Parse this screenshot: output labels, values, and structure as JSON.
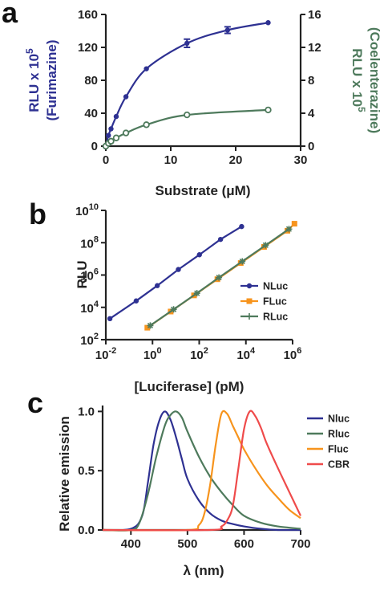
{
  "colors": {
    "blue": "#2E3192",
    "green": "#4E7A5C",
    "orange": "#F7941D",
    "red": "#EF4B4B",
    "axis": "#222222"
  },
  "panels": {
    "a": "a",
    "b": "b",
    "c": "c"
  },
  "chart_data": [
    {
      "id": "a",
      "type": "line",
      "xlabel": "Substrate (μM)",
      "ylabel": "RLU x 10",
      "ylabel_exp": "5",
      "ylabel_sub": "(Furimazine)",
      "y2label": "RLU x 10",
      "y2label_exp": "5",
      "y2label_sub": "(Coelenterazine)",
      "xlim": [
        0,
        30
      ],
      "ylim": [
        0,
        160
      ],
      "y2lim": [
        0,
        16
      ],
      "xticks": [
        "0",
        "10",
        "20",
        "30"
      ],
      "yticks": [
        "0",
        "40",
        "80",
        "120",
        "160"
      ],
      "y2ticks": [
        "0",
        "4",
        "8",
        "12",
        "16"
      ],
      "series": [
        {
          "axis": "left",
          "color": "#2E3192",
          "marker": "filled-circle",
          "x": [
            0,
            0.4,
            0.8,
            1.6,
            3.1,
            6.25,
            12.5,
            18.75,
            25
          ],
          "y": [
            0,
            13,
            21,
            36,
            60,
            94,
            125,
            141,
            150
          ],
          "err": [
            0,
            0,
            0,
            0,
            0,
            0,
            5,
            4,
            0
          ]
        },
        {
          "axis": "right",
          "color": "#4E7A5C",
          "marker": "open-circle",
          "x": [
            0,
            0.4,
            0.8,
            1.6,
            3.1,
            6.25,
            12.5,
            25
          ],
          "y": [
            0,
            0.35,
            0.6,
            1,
            1.6,
            2.6,
            3.8,
            4.4
          ]
        }
      ]
    },
    {
      "id": "b",
      "type": "line",
      "scale": "log",
      "xlabel": "[Luciferase] (pM)",
      "ylabel": "RLU",
      "xlim": [
        0.01,
        1000000
      ],
      "ylim": [
        100,
        10000000000
      ],
      "xticks": [
        {
          "b": "10",
          "e": "-2"
        },
        {
          "b": "10",
          "e": "0"
        },
        {
          "b": "10",
          "e": "2"
        },
        {
          "b": "10",
          "e": "4"
        },
        {
          "b": "10",
          "e": "6"
        }
      ],
      "yticks": [
        {
          "b": "10",
          "e": "2"
        },
        {
          "b": "10",
          "e": "4"
        },
        {
          "b": "10",
          "e": "6"
        },
        {
          "b": "10",
          "e": "8"
        },
        {
          "b": "10",
          "e": "10"
        }
      ],
      "series": [
        {
          "name": "NLuc",
          "color": "#2E3192",
          "marker": "circle",
          "x": [
            0.015,
            0.2,
            1.6,
            12.8,
            102,
            820,
            6550
          ],
          "y": [
            2000,
            25000,
            220000,
            2200000,
            18000000,
            160000000,
            1000000000
          ]
        },
        {
          "name": "FLuc",
          "color": "#F7941D",
          "marker": "square",
          "x": [
            0.6,
            6,
            60,
            600,
            6000,
            60000,
            600000,
            1200000
          ],
          "y": [
            550,
            5500,
            55000,
            550000,
            5500000,
            55000000,
            550000000,
            1500000000
          ]
        },
        {
          "name": "RLuc",
          "color": "#4E7A5C",
          "marker": "cross",
          "x": [
            0.8,
            8,
            80,
            700,
            7000,
            70000,
            700000
          ],
          "y": [
            750,
            7500,
            75000,
            700000,
            7000000,
            70000000,
            700000000
          ]
        }
      ],
      "legend_position": "right"
    },
    {
      "id": "c",
      "type": "line",
      "xlabel": "λ (nm)",
      "ylabel": "Relative emission",
      "xlim": [
        350,
        700
      ],
      "ylim": [
        0,
        1.05
      ],
      "xticks": [
        "400",
        "500",
        "600",
        "700"
      ],
      "yticks": [
        "0.0",
        "0.5",
        "1.0"
      ],
      "legend_position": "top-right",
      "series": [
        {
          "name": "Nluc",
          "color": "#2E3192",
          "x": [
            350,
            400,
            420,
            430,
            440,
            450,
            460,
            470,
            480,
            490,
            500,
            520,
            540,
            560,
            580,
            600,
            630,
            660,
            700
          ],
          "y": [
            0,
            0.01,
            0.12,
            0.4,
            0.72,
            0.92,
            1.0,
            0.93,
            0.78,
            0.6,
            0.43,
            0.25,
            0.14,
            0.08,
            0.05,
            0.03,
            0.01,
            0,
            0
          ]
        },
        {
          "name": "Rluc",
          "color": "#4E7A5C",
          "x": [
            350,
            400,
            415,
            430,
            445,
            460,
            470,
            480,
            490,
            500,
            520,
            540,
            560,
            580,
            600,
            630,
            660,
            700
          ],
          "y": [
            0,
            0,
            0.06,
            0.3,
            0.62,
            0.88,
            0.97,
            1.0,
            0.95,
            0.83,
            0.62,
            0.45,
            0.32,
            0.21,
            0.12,
            0.06,
            0.03,
            0.01
          ]
        },
        {
          "name": "Fluc",
          "color": "#F7941D",
          "x": [
            350,
            500,
            520,
            530,
            540,
            550,
            560,
            570,
            580,
            590,
            600,
            620,
            640,
            660,
            680,
            700
          ],
          "y": [
            0,
            0,
            0.04,
            0.14,
            0.38,
            0.72,
            0.98,
            0.98,
            0.88,
            0.78,
            0.68,
            0.52,
            0.38,
            0.27,
            0.17,
            0.1
          ]
        },
        {
          "name": "CBR",
          "color": "#EF4B4B",
          "x": [
            350,
            540,
            560,
            570,
            580,
            590,
            600,
            610,
            620,
            630,
            640,
            660,
            680,
            700
          ],
          "y": [
            0,
            0,
            0.03,
            0.08,
            0.2,
            0.52,
            0.85,
            1.0,
            0.96,
            0.86,
            0.73,
            0.52,
            0.32,
            0.12
          ]
        }
      ]
    }
  ]
}
